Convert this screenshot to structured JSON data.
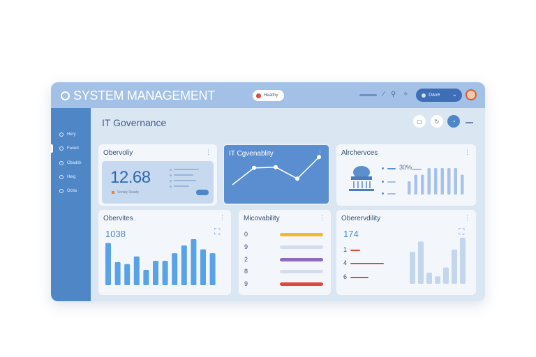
{
  "header": {
    "title": "SYSTEM MANAGEMENT",
    "status_label": "Healthy",
    "user_label": "Dave",
    "colors": {
      "bar": "#a3c0e6",
      "accent": "#3e6fb6",
      "status": "#e0483d"
    }
  },
  "sidebar": {
    "items": [
      {
        "label": "Hery",
        "icon": "home-icon"
      },
      {
        "label": "Faxed",
        "icon": "grid-icon"
      },
      {
        "label": "Cbadds",
        "icon": "cloud-icon"
      },
      {
        "label": "Heig",
        "icon": "settings-icon"
      },
      {
        "label": "Octla",
        "icon": "globe-icon"
      }
    ],
    "active_index": 1
  },
  "main": {
    "title": "IT Governance",
    "cards": {
      "c1": {
        "title": "Obervoliy",
        "value": "12.68",
        "sub_label": "Verialy Ready"
      },
      "c2": {
        "title": "IT Cgvenablity",
        "line_values": [
          1.0,
          3.2,
          3.3,
          1.8,
          4.6
        ]
      },
      "c3": {
        "title": "Alrchervces",
        "percent": "30%",
        "bar_values": [
          2,
          3,
          3,
          4,
          4,
          4,
          4,
          4,
          3
        ]
      },
      "c4": {
        "title": "Obervites",
        "value": "1038",
        "bar_values": [
          6.6,
          3.6,
          3.3,
          4.5,
          2.4,
          3.8,
          3.8,
          5.0,
          6.2,
          7.2,
          5.6,
          5.0
        ]
      },
      "c5": {
        "title": "Micovability",
        "rows": [
          {
            "label": "0",
            "color": "#f2b92d",
            "fill": 1.0
          },
          {
            "label": "9",
            "color": "#d5dceb",
            "fill": 1.0
          },
          {
            "label": "2",
            "color": "#8d6cc0",
            "fill": 1.0
          },
          {
            "label": "8",
            "color": "#d5dceb",
            "fill": 1.0
          },
          {
            "label": "9",
            "color": "#e0483d",
            "fill": 1.0
          }
        ]
      },
      "c6": {
        "title": "Oberervdility",
        "value": "174",
        "legend": [
          {
            "label": "1",
            "fill": 0.3
          },
          {
            "label": "4",
            "fill": 1.0
          },
          {
            "label": "6",
            "fill": 0.55
          }
        ],
        "bar_values": [
          4.3,
          5.7,
          1.5,
          1.0,
          2.2,
          4.6,
          6.2
        ]
      }
    }
  }
}
